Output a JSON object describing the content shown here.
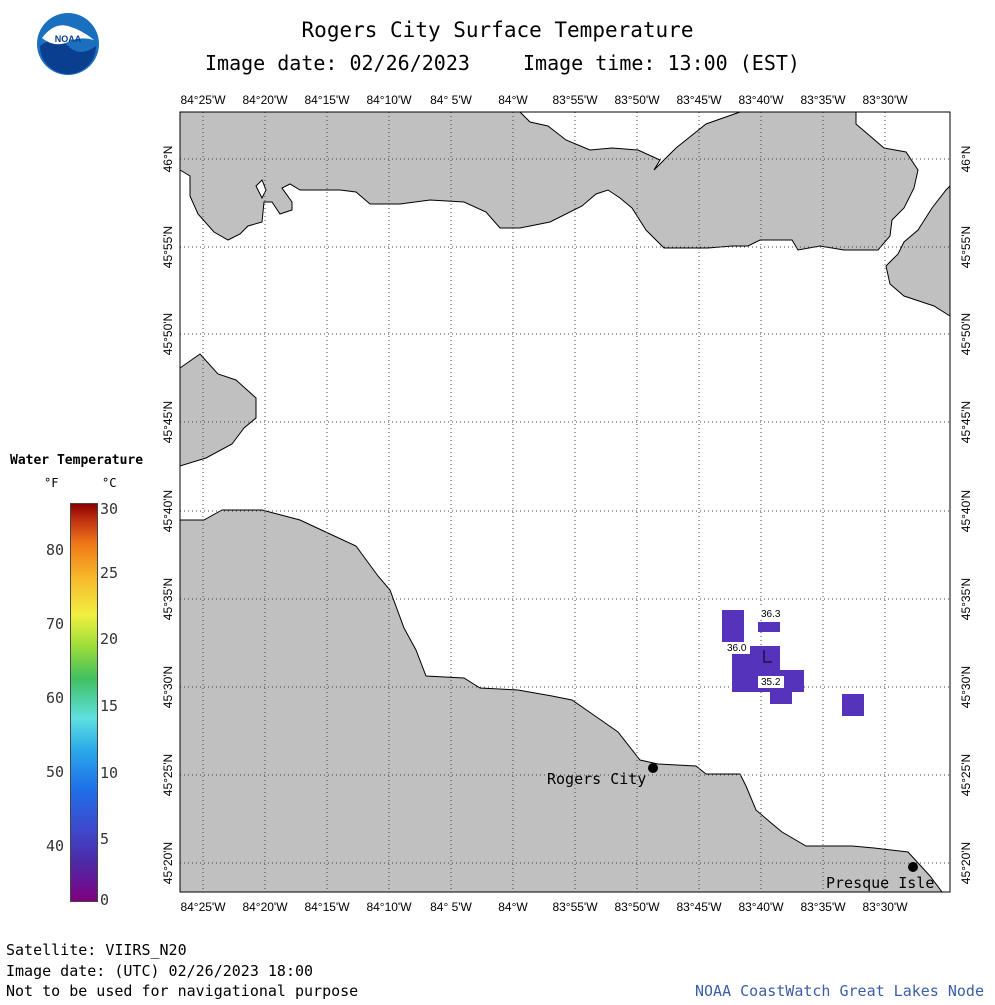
{
  "header": {
    "title": "Rogers City Surface Temperature",
    "image_date": "Image date: 02/26/2023",
    "image_time": "Image time: 13:00 (EST)"
  },
  "logo": {
    "text": "NOAA",
    "icon": "noaa-logo-icon"
  },
  "map": {
    "longitude_labels": [
      "84°25'W",
      "84°20'W",
      "84°15'W",
      "84°10'W",
      "84° 5'W",
      "84°W",
      "83°55'W",
      "83°50'W",
      "83°45'W",
      "83°40'W",
      "83°35'W",
      "83°30'W"
    ],
    "latitude_labels": [
      "46°N",
      "45°55'N",
      "45°50'N",
      "45°45'N",
      "45°40'N",
      "45°35'N",
      "45°30'N",
      "45°25'N",
      "45°20'N"
    ],
    "places": [
      {
        "name": "Rogers City"
      },
      {
        "name": "Presque Isle"
      }
    ],
    "data_labels": [
      "36.3",
      "36.0",
      "35.2"
    ],
    "land_color": "#c0c0c0",
    "water_color": "#ffffff",
    "pixel_color": "#5533bb"
  },
  "legend": {
    "title": "Water Temperature",
    "unit_f": "°F",
    "unit_c": "°C",
    "ticks_f": [
      "80",
      "70",
      "60",
      "50",
      "40"
    ],
    "ticks_c": [
      "30",
      "25",
      "20",
      "15",
      "10",
      "5",
      "0"
    ]
  },
  "footer": {
    "satellite": "Satellite: VIIRS_N20",
    "image_date_utc": "Image date: (UTC) 02/26/2023  18:00",
    "warning": "Not to be used for navigational purpose",
    "credit": "NOAA CoastWatch Great Lakes Node"
  }
}
